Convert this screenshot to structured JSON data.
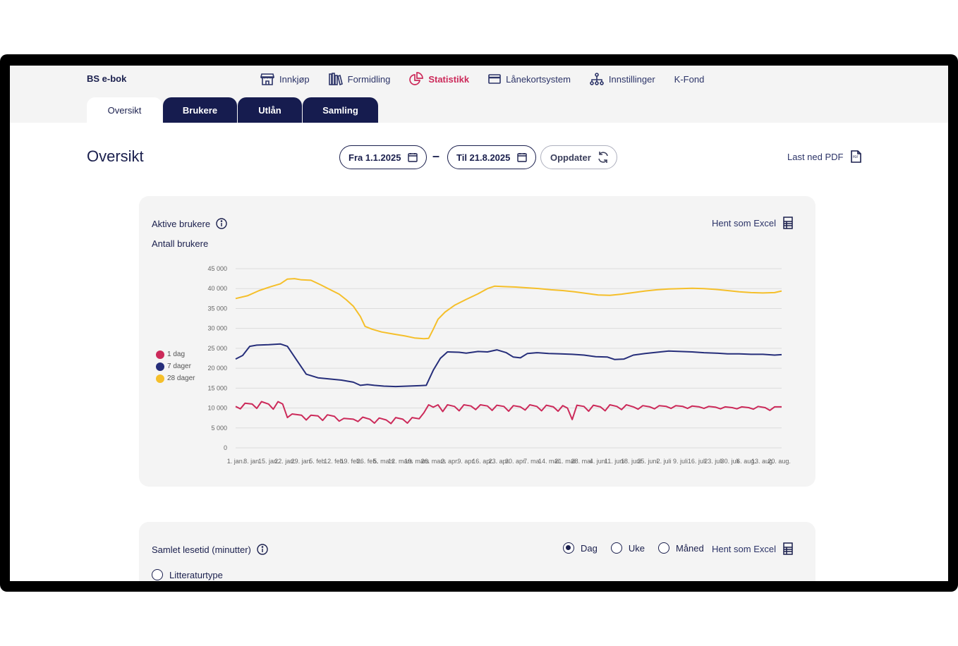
{
  "app": {
    "brand": "BS e-bok"
  },
  "nav": [
    {
      "label": "Innkjøp",
      "icon": "store-icon",
      "active": false
    },
    {
      "label": "Formidling",
      "icon": "books-icon",
      "active": false
    },
    {
      "label": "Statistikk",
      "icon": "pie-chart-icon",
      "active": true
    },
    {
      "label": "Lånekortsystem",
      "icon": "card-icon",
      "active": false
    },
    {
      "label": "Innstillinger",
      "icon": "hierarchy-icon",
      "active": false
    },
    {
      "label": "K-Fond",
      "icon": "",
      "active": false
    }
  ],
  "tabs": [
    {
      "label": "Oversikt",
      "active": true
    },
    {
      "label": "Brukere",
      "active": false
    },
    {
      "label": "Utlån",
      "active": false
    },
    {
      "label": "Samling",
      "active": false
    }
  ],
  "page": {
    "title": "Oversikt"
  },
  "filters": {
    "from_label": "Fra 1.1.2025",
    "to_label": "Til 21.8.2025",
    "separator": "–",
    "update_label": "Oppdater",
    "download_pdf_label": "Last ned PDF"
  },
  "active_users_card": {
    "title": "Aktive brukere",
    "excel_label": "Hent som Excel",
    "subtitle": "Antall brukere"
  },
  "reading_time_card": {
    "title": "Samlet lesetid (minutter)",
    "excel_label": "Hent som Excel",
    "period_options": [
      {
        "label": "Dag",
        "selected": true
      },
      {
        "label": "Uke",
        "selected": false
      },
      {
        "label": "Måned",
        "selected": false
      }
    ],
    "group_option": {
      "label": "Litteraturtype",
      "selected": false
    }
  },
  "chart_data": {
    "type": "line",
    "title": "",
    "xlabel": "",
    "ylabel": "Antall brukere",
    "ylim": [
      0,
      45000
    ],
    "yticks": [
      0,
      5000,
      10000,
      15000,
      20000,
      25000,
      30000,
      35000,
      40000,
      45000
    ],
    "ytick_labels": [
      "0",
      "5 000",
      "10 000",
      "15 000",
      "20 000",
      "25 000",
      "30 000",
      "35 000",
      "40 000",
      "45 000"
    ],
    "x_tick_labels": [
      "1. jan.",
      "8. jan.",
      "15. jan.",
      "22. jan.",
      "29. jan.",
      "5. feb.",
      "12. feb.",
      "19. feb.",
      "26. feb.",
      "5. mars",
      "12. mars",
      "19. mars",
      "26. mars",
      "2. apr.",
      "9. apr.",
      "16. apr.",
      "23. apr.",
      "30. apr.",
      "7. mai",
      "14. mai",
      "21. mai",
      "28. mai",
      "4. juni",
      "11. juni",
      "18. juni",
      "25. juni",
      "2. juli",
      "9. juli",
      "16. juli",
      "23. juli",
      "30. juli",
      "6. aug.",
      "13. aug.",
      "20. aug."
    ],
    "x_domain_days": [
      0,
      232
    ],
    "grid": true,
    "legend_position": "left",
    "series": [
      {
        "name": "1 dag",
        "color": "#cc2a5a",
        "points": [
          [
            0,
            10400
          ],
          [
            2,
            9800
          ],
          [
            4,
            11200
          ],
          [
            7,
            11000
          ],
          [
            9,
            9900
          ],
          [
            11,
            11600
          ],
          [
            14,
            11000
          ],
          [
            16,
            9700
          ],
          [
            18,
            11600
          ],
          [
            20,
            11000
          ],
          [
            22,
            7600
          ],
          [
            24,
            8500
          ],
          [
            28,
            8200
          ],
          [
            30,
            7000
          ],
          [
            32,
            8200
          ],
          [
            35,
            8000
          ],
          [
            37,
            6900
          ],
          [
            39,
            8300
          ],
          [
            42,
            7900
          ],
          [
            44,
            6700
          ],
          [
            46,
            7400
          ],
          [
            50,
            7200
          ],
          [
            52,
            6600
          ],
          [
            54,
            7700
          ],
          [
            57,
            7200
          ],
          [
            59,
            6200
          ],
          [
            61,
            7500
          ],
          [
            64,
            7000
          ],
          [
            66,
            6100
          ],
          [
            68,
            7600
          ],
          [
            71,
            7200
          ],
          [
            73,
            6200
          ],
          [
            75,
            7600
          ],
          [
            78,
            7300
          ],
          [
            80,
            8800
          ],
          [
            82,
            10800
          ],
          [
            84,
            10200
          ],
          [
            86,
            10800
          ],
          [
            88,
            9100
          ],
          [
            90,
            10800
          ],
          [
            93,
            10400
          ],
          [
            95,
            9300
          ],
          [
            97,
            10800
          ],
          [
            100,
            10500
          ],
          [
            102,
            9600
          ],
          [
            104,
            10800
          ],
          [
            107,
            10500
          ],
          [
            109,
            9400
          ],
          [
            111,
            10700
          ],
          [
            114,
            10400
          ],
          [
            116,
            9200
          ],
          [
            118,
            10600
          ],
          [
            121,
            10300
          ],
          [
            123,
            9500
          ],
          [
            125,
            10800
          ],
          [
            128,
            10400
          ],
          [
            130,
            9300
          ],
          [
            132,
            10700
          ],
          [
            135,
            10300
          ],
          [
            137,
            9200
          ],
          [
            139,
            10600
          ],
          [
            141,
            10000
          ],
          [
            143,
            7100
          ],
          [
            145,
            10700
          ],
          [
            148,
            10400
          ],
          [
            150,
            9200
          ],
          [
            152,
            10700
          ],
          [
            155,
            10300
          ],
          [
            157,
            9300
          ],
          [
            159,
            10800
          ],
          [
            162,
            10400
          ],
          [
            164,
            9600
          ],
          [
            166,
            10800
          ],
          [
            169,
            10300
          ],
          [
            171,
            9700
          ],
          [
            173,
            10600
          ],
          [
            176,
            10300
          ],
          [
            178,
            9800
          ],
          [
            180,
            10600
          ],
          [
            183,
            10400
          ],
          [
            185,
            9900
          ],
          [
            187,
            10600
          ],
          [
            190,
            10400
          ],
          [
            192,
            9900
          ],
          [
            194,
            10500
          ],
          [
            197,
            10300
          ],
          [
            199,
            9900
          ],
          [
            201,
            10400
          ],
          [
            204,
            10200
          ],
          [
            206,
            9800
          ],
          [
            208,
            10300
          ],
          [
            211,
            10100
          ],
          [
            213,
            9800
          ],
          [
            215,
            10300
          ],
          [
            218,
            10100
          ],
          [
            220,
            9700
          ],
          [
            222,
            10400
          ],
          [
            225,
            10100
          ],
          [
            227,
            9400
          ],
          [
            229,
            10300
          ],
          [
            232,
            10300
          ]
        ]
      },
      {
        "name": "7 dager",
        "color": "#262e7a",
        "points": [
          [
            0,
            22300
          ],
          [
            3,
            23200
          ],
          [
            6,
            25500
          ],
          [
            9,
            25800
          ],
          [
            14,
            25900
          ],
          [
            19,
            26100
          ],
          [
            22,
            25500
          ],
          [
            26,
            22000
          ],
          [
            30,
            18500
          ],
          [
            35,
            17600
          ],
          [
            40,
            17300
          ],
          [
            45,
            17000
          ],
          [
            50,
            16500
          ],
          [
            53,
            15700
          ],
          [
            56,
            15900
          ],
          [
            59,
            15700
          ],
          [
            63,
            15500
          ],
          [
            68,
            15400
          ],
          [
            73,
            15500
          ],
          [
            78,
            15600
          ],
          [
            81,
            15700
          ],
          [
            84,
            19500
          ],
          [
            87,
            22500
          ],
          [
            90,
            24100
          ],
          [
            95,
            24000
          ],
          [
            98,
            23800
          ],
          [
            103,
            24200
          ],
          [
            107,
            24100
          ],
          [
            111,
            24600
          ],
          [
            115,
            23900
          ],
          [
            118,
            22800
          ],
          [
            121,
            22600
          ],
          [
            124,
            23700
          ],
          [
            128,
            23900
          ],
          [
            133,
            23700
          ],
          [
            138,
            23600
          ],
          [
            143,
            23500
          ],
          [
            148,
            23300
          ],
          [
            153,
            22900
          ],
          [
            158,
            22800
          ],
          [
            161,
            22200
          ],
          [
            165,
            22300
          ],
          [
            169,
            23300
          ],
          [
            174,
            23700
          ],
          [
            179,
            24000
          ],
          [
            184,
            24300
          ],
          [
            189,
            24200
          ],
          [
            194,
            24100
          ],
          [
            199,
            23900
          ],
          [
            204,
            23800
          ],
          [
            209,
            23600
          ],
          [
            214,
            23600
          ],
          [
            219,
            23500
          ],
          [
            224,
            23500
          ],
          [
            229,
            23300
          ],
          [
            232,
            23400
          ]
        ]
      },
      {
        "name": "28 dager",
        "color": "#f5bf2a",
        "points": [
          [
            0,
            37500
          ],
          [
            5,
            38200
          ],
          [
            10,
            39500
          ],
          [
            15,
            40500
          ],
          [
            19,
            41200
          ],
          [
            22,
            42400
          ],
          [
            25,
            42500
          ],
          [
            28,
            42200
          ],
          [
            32,
            42100
          ],
          [
            36,
            41000
          ],
          [
            40,
            39800
          ],
          [
            44,
            38600
          ],
          [
            47,
            37200
          ],
          [
            50,
            35600
          ],
          [
            53,
            33000
          ],
          [
            55,
            30500
          ],
          [
            58,
            29800
          ],
          [
            62,
            29100
          ],
          [
            67,
            28600
          ],
          [
            72,
            28100
          ],
          [
            76,
            27600
          ],
          [
            80,
            27400
          ],
          [
            82,
            27500
          ],
          [
            84,
            29800
          ],
          [
            86,
            32300
          ],
          [
            89,
            34100
          ],
          [
            93,
            35800
          ],
          [
            98,
            37300
          ],
          [
            103,
            38700
          ],
          [
            107,
            40000
          ],
          [
            110,
            40600
          ],
          [
            114,
            40500
          ],
          [
            119,
            40400
          ],
          [
            124,
            40200
          ],
          [
            129,
            40000
          ],
          [
            134,
            39700
          ],
          [
            139,
            39500
          ],
          [
            144,
            39200
          ],
          [
            149,
            38800
          ],
          [
            154,
            38400
          ],
          [
            159,
            38300
          ],
          [
            164,
            38600
          ],
          [
            169,
            39000
          ],
          [
            174,
            39400
          ],
          [
            179,
            39700
          ],
          [
            184,
            39900
          ],
          [
            189,
            40000
          ],
          [
            194,
            40100
          ],
          [
            199,
            40000
          ],
          [
            204,
            39800
          ],
          [
            209,
            39500
          ],
          [
            214,
            39200
          ],
          [
            219,
            39000
          ],
          [
            224,
            38900
          ],
          [
            229,
            39000
          ],
          [
            232,
            39400
          ]
        ]
      }
    ]
  }
}
